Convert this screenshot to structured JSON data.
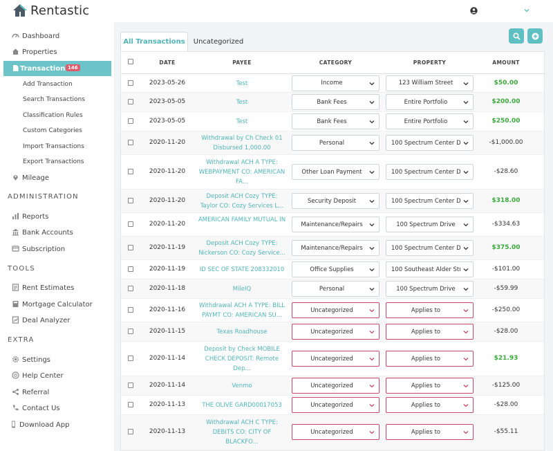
{
  "app": {
    "name": "Rentastic",
    "accent": "#5fc0c4",
    "danger": "#c9466a",
    "positive": "#3aa83a"
  },
  "header": {
    "user_icon": "user-icon",
    "menu_icon": "chevron-down-icon"
  },
  "sidebar": {
    "dashboard": "Dashboard",
    "properties": "Properties",
    "transactions": "Transactions",
    "transactions_badge": "146",
    "sub": [
      "Add Transaction",
      "Search Transactions",
      "Classification Rules",
      "Custom Categories",
      "Import Transactions",
      "Export Transactions"
    ],
    "mileage": "Mileage",
    "administration": "ADMINISTRATION",
    "reports": "Reports",
    "bank_accounts": "Bank Accounts",
    "subscription": "Subscription",
    "tools": "TOOLS",
    "rent_estimates": "Rent Estimates",
    "mortgage_calculator": "Mortgage Calculator",
    "deal_analyzer": "Deal Analyzer",
    "extra": "EXTRA",
    "settings": "Settings",
    "help_center": "Help Center",
    "referral": "Referral",
    "contact_us": "Contact Us",
    "download_app": "Download App"
  },
  "tabs": {
    "all": "All Transactions",
    "uncategorized": "Uncategorized"
  },
  "columns": {
    "date": "DATE",
    "payee": "PAYEE",
    "category": "CATEGORY",
    "property": "PROPERTY",
    "amount": "AMOUNT"
  },
  "rows": [
    {
      "date": "2023-05-26",
      "payee": "Test",
      "category": "Income",
      "property": "123 William Street",
      "amount": "$50.00",
      "positive": true,
      "uncat": false
    },
    {
      "date": "2023-05-05",
      "payee": "Test",
      "category": "Bank Fees",
      "property": "Entire Portfolio",
      "amount": "$200.00",
      "positive": true,
      "uncat": false
    },
    {
      "date": "2023-05-05",
      "payee": "Test",
      "category": "Bank Fees",
      "property": "Entire Portfolio",
      "amount": "$250.00",
      "positive": true,
      "uncat": false
    },
    {
      "date": "2020-11-20",
      "payee": "Withdrawal by Ch Check 01 Disbursed 1,000.00",
      "category": "Personal",
      "property": "100 Spectrum Center D",
      "amount": "-$1,000.00",
      "positive": false,
      "uncat": false
    },
    {
      "date": "2020-11-20",
      "payee": "Withdrawal ACH A TYPE: WEBPAYMENT CO: AMERICAN FA...",
      "category": "Other Loan Payment",
      "property": "100 Spectrum Center D",
      "amount": "-$28.60",
      "positive": false,
      "uncat": false
    },
    {
      "date": "2020-11-20",
      "payee": "Deposit ACH Cozy TYPE: Taylor CO: Cozy Services L...",
      "category": "Security Deposit",
      "property": "100 Spectrum Center D",
      "amount": "$318.00",
      "positive": true,
      "uncat": false
    },
    {
      "date": "2020-11-20",
      "payee": "AMERICAN FAMILY MUTUAL IN",
      "category": "Maintenance/Repairs",
      "property": "100 Spectrum Drive",
      "amount": "-$334.63",
      "positive": false,
      "uncat": false
    },
    {
      "date": "2020-11-19",
      "payee": "Deposit ACH Cozy TYPE: Nickerson CO: Cozy Service...",
      "category": "Maintenance/Repairs",
      "property": "100 Spectrum Center D",
      "amount": "$375.00",
      "positive": true,
      "uncat": false
    },
    {
      "date": "2020-11-19",
      "payee": "ID SEC OF STATE 208332010",
      "category": "Office Supplies",
      "property": "100 Southeast Alder Str",
      "amount": "-$101.00",
      "positive": false,
      "uncat": false
    },
    {
      "date": "2020-11-18",
      "payee": "MileIQ",
      "category": "Personal",
      "property": "100 Spectrum Drive",
      "amount": "-$59.99",
      "positive": false,
      "uncat": false
    },
    {
      "date": "2020-11-16",
      "payee": "Withdrawal ACH A TYPE: BILL PAYMT CO: AMERICAN SU...",
      "category": "Uncategorized",
      "property": "Applies to",
      "amount": "-$250.00",
      "positive": false,
      "uncat": true
    },
    {
      "date": "2020-11-15",
      "payee": "Texas Roadhouse",
      "category": "Uncategorized",
      "property": "Applies to",
      "amount": "-$28.00",
      "positive": false,
      "uncat": true
    },
    {
      "date": "2020-11-14",
      "payee": "Deposit by Check MOBILE CHECK DEPOSIT: Remote Dep...",
      "category": "Uncategorized",
      "property": "Applies to",
      "amount": "$21.93",
      "positive": true,
      "uncat": true
    },
    {
      "date": "2020-11-14",
      "payee": "Venmo",
      "category": "Uncategorized",
      "property": "Applies to",
      "amount": "-$125.00",
      "positive": false,
      "uncat": true
    },
    {
      "date": "2020-11-13",
      "payee": "THE OLIVE GARD00017053",
      "category": "Uncategorized",
      "property": "Applies to",
      "amount": "-$28.00",
      "positive": false,
      "uncat": true
    },
    {
      "date": "2020-11-13",
      "payee": "Withdrawal ACH C TYPE: DEBITS CO: CITY OF BLACKFO...",
      "category": "Uncategorized",
      "property": "Applies to",
      "amount": "-$55.11",
      "positive": false,
      "uncat": true
    }
  ]
}
